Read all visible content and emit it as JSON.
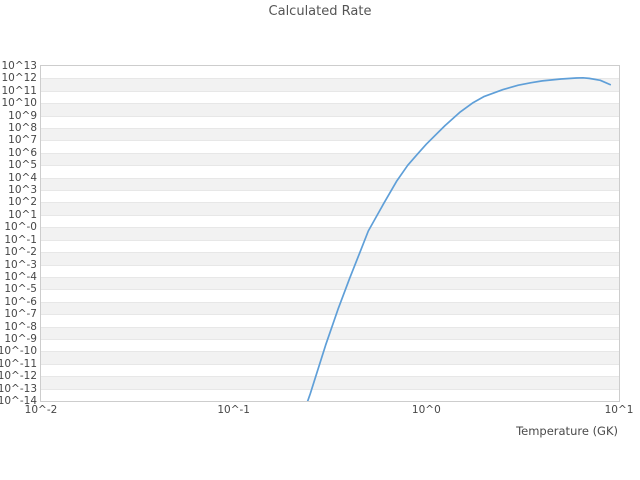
{
  "title": "Calculated Rate",
  "colors": {
    "background": "#ffffff",
    "band_stripe": "#f2f2f2",
    "gridline": "#e7e7e7",
    "plot_border": "#cdcdcd",
    "curve": "#5f9fd8",
    "title_text": "#555555",
    "tick_text": "#474747"
  },
  "chart_data": {
    "type": "line",
    "title": "Calculated Rate",
    "xlabel": "Temperature (GK)",
    "ylabel": "",
    "x_scale": "log",
    "y_scale": "log",
    "xlim": [
      0.01,
      10
    ],
    "y_exponent_range": [
      -14,
      13
    ],
    "x_tick_labels": [
      "10^-2",
      "10^-1",
      "10^0",
      "10^1"
    ],
    "y_tick_labels": [
      "10^13",
      "10^12",
      "10^11",
      "10^10",
      "10^9",
      "10^8",
      "10^7",
      "10^6",
      "10^5",
      "10^4",
      "10^3",
      "10^2",
      "10^1",
      "10^-0",
      "10^-1",
      "10^-2",
      "10^-3",
      "10^-4",
      "10^-5",
      "10^-6",
      "10^-7",
      "10^-8",
      "10^-9",
      "10^-10",
      "10^-11",
      "10^-12",
      "10^-13",
      "10^-14"
    ],
    "grid": "horizontal-striped-bands",
    "legend": "none",
    "series": [
      {
        "name": "calculated-rate",
        "color": "#5f9fd8",
        "points_format": "[temperature_GK, log10_of_rate]",
        "points": [
          [
            0.23,
            -15.0
          ],
          [
            0.25,
            -13.4
          ],
          [
            0.3,
            -9.5
          ],
          [
            0.35,
            -6.5
          ],
          [
            0.4,
            -4.1
          ],
          [
            0.45,
            -2.1
          ],
          [
            0.5,
            -0.3
          ],
          [
            0.6,
            1.9
          ],
          [
            0.7,
            3.7
          ],
          [
            0.8,
            5.0
          ],
          [
            0.9,
            5.9
          ],
          [
            1.0,
            6.7
          ],
          [
            1.25,
            8.2
          ],
          [
            1.5,
            9.3
          ],
          [
            1.75,
            10.05
          ],
          [
            2.0,
            10.55
          ],
          [
            2.5,
            11.1
          ],
          [
            3.0,
            11.45
          ],
          [
            3.5,
            11.65
          ],
          [
            4.0,
            11.8
          ],
          [
            5.0,
            11.95
          ],
          [
            6.0,
            12.03
          ],
          [
            6.5,
            12.05
          ],
          [
            7.0,
            12.0
          ],
          [
            8.0,
            11.85
          ],
          [
            9.0,
            11.5
          ]
        ]
      }
    ]
  }
}
